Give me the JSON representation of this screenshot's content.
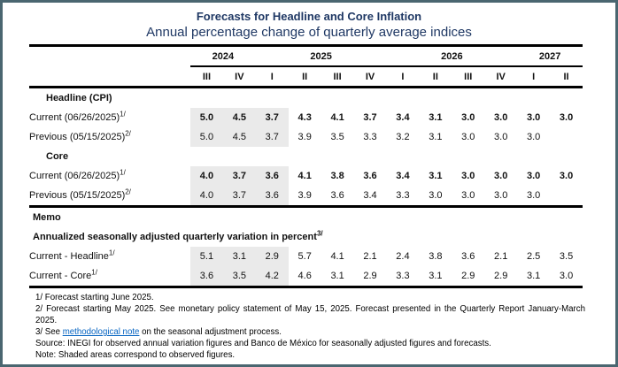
{
  "colors": {
    "frame_border": "#4a6670",
    "heading_text": "#1F3864",
    "shade": "#EAEAEA",
    "link": "#0563C1"
  },
  "header": {
    "title": "Forecasts for Headline and Core Inflation",
    "subtitle": "Annual percentage change of quarterly average indices"
  },
  "table": {
    "year_groups": [
      {
        "label": "2024",
        "span": 2
      },
      {
        "label": "2025",
        "span": 4
      },
      {
        "label": "2026",
        "span": 4
      },
      {
        "label": "2027",
        "span": 2
      }
    ],
    "quarters": [
      "III",
      "IV",
      "I",
      "II",
      "III",
      "IV",
      "I",
      "II",
      "III",
      "IV",
      "I",
      "II"
    ],
    "shaded_column_count": 3,
    "sections": [
      {
        "heading": "Headline (CPI)",
        "rows": [
          {
            "label": "Current (06/26/2025)",
            "sup": "1/",
            "bold": true,
            "values": [
              "5.0",
              "4.5",
              "3.7",
              "4.3",
              "4.1",
              "3.7",
              "3.4",
              "3.1",
              "3.0",
              "3.0",
              "3.0",
              "3.0"
            ]
          },
          {
            "label": "Previous (05/15/2025)",
            "sup": "2/",
            "bold": false,
            "values": [
              "5.0",
              "4.5",
              "3.7",
              "3.9",
              "3.5",
              "3.3",
              "3.2",
              "3.1",
              "3.0",
              "3.0",
              "3.0",
              ""
            ]
          }
        ]
      },
      {
        "heading": "Core",
        "rows": [
          {
            "label": "Current (06/26/2025)",
            "sup": "1/",
            "bold": true,
            "values": [
              "4.0",
              "3.7",
              "3.6",
              "4.1",
              "3.8",
              "3.6",
              "3.4",
              "3.1",
              "3.0",
              "3.0",
              "3.0",
              "3.0"
            ]
          },
          {
            "label": "Previous (05/15/2025)",
            "sup": "2/",
            "bold": false,
            "values": [
              "4.0",
              "3.7",
              "3.6",
              "3.9",
              "3.6",
              "3.4",
              "3.3",
              "3.0",
              "3.0",
              "3.0",
              "3.0",
              ""
            ]
          }
        ]
      }
    ],
    "memo": {
      "heading": "Memo",
      "subheading": "Annualized seasonally adjusted quarterly variation in percent",
      "subheading_sup": "3/",
      "rows": [
        {
          "label": "Current - Headline",
          "sup": "1/",
          "bold": false,
          "values": [
            "5.1",
            "3.1",
            "2.9",
            "5.7",
            "4.1",
            "2.1",
            "2.4",
            "3.8",
            "3.6",
            "2.1",
            "2.5",
            "3.5"
          ]
        },
        {
          "label": "Current - Core",
          "sup": "1/",
          "bold": false,
          "values": [
            "3.6",
            "3.5",
            "4.2",
            "4.6",
            "3.1",
            "2.9",
            "3.3",
            "3.1",
            "2.9",
            "2.9",
            "3.1",
            "3.0"
          ]
        }
      ]
    }
  },
  "footnotes": {
    "fn1": "1/ Forecast starting June 2025.",
    "fn2": "2/ Forecast starting May 2025. See monetary policy statement of May 15, 2025. Forecast presented in the Quarterly Report January-March 2025.",
    "fn3_prefix": "3/ See ",
    "fn3_link": "methodological note",
    "fn3_suffix": " on the seasonal adjustment process.",
    "source": "Source: INEGI for observed annual variation figures and Banco de México for seasonally adjusted figures and forecasts.",
    "note": "Note: Shaded areas correspond to observed figures."
  }
}
